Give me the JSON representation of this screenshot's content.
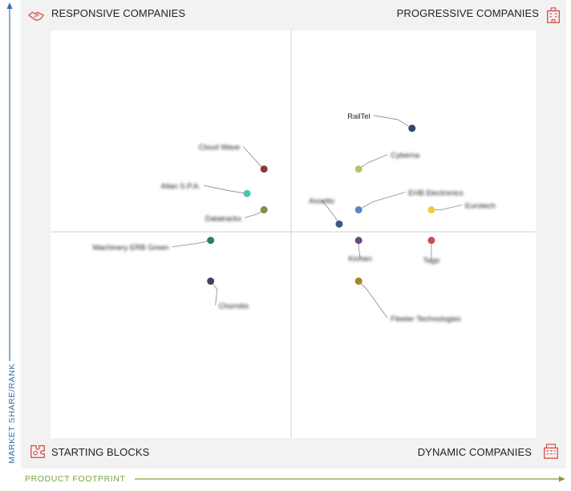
{
  "chart_data": {
    "type": "scatter",
    "title": "",
    "xlabel": "PRODUCT FOOTPRINT",
    "ylabel": "MARKET SHARE/RANK",
    "xlim": [
      0,
      10
    ],
    "ylim": [
      0,
      10
    ],
    "quadrants": {
      "top_left": "RESPONSIVE COMPANIES",
      "top_right": "PROGRESSIVE COMPANIES",
      "bottom_left": "STARTING BLOCKS",
      "bottom_right": "DYNAMIC COMPANIES"
    },
    "points": [
      {
        "label": "RailTel",
        "x": 7.45,
        "y": 7.6,
        "color": "#2f4a66",
        "blurred": false
      },
      {
        "label": "Cyberna",
        "x": 6.35,
        "y": 6.6,
        "color": "#b5c46a",
        "blurred": true
      },
      {
        "label": "EHB Electronics",
        "x": 6.35,
        "y": 5.6,
        "color": "#5b86c4",
        "blurred": true
      },
      {
        "label": "Eurotech",
        "x": 7.85,
        "y": 5.6,
        "color": "#f5c842",
        "blurred": true
      },
      {
        "label": "Assetto",
        "x": 5.95,
        "y": 5.25,
        "color": "#3d5a80",
        "blurred": true
      },
      {
        "label": "Cloud Wave",
        "x": 4.4,
        "y": 6.6,
        "color": "#8b3a3a",
        "blurred": true
      },
      {
        "label": "Ailan S.P.A.",
        "x": 4.05,
        "y": 6.0,
        "color": "#4fc2b0",
        "blurred": true
      },
      {
        "label": "Datatrackx",
        "x": 4.4,
        "y": 5.6,
        "color": "#8a8a4a",
        "blurred": true
      },
      {
        "label": "Machinery ERB Green",
        "x": 3.3,
        "y": 4.85,
        "color": "#2e7d6b",
        "blurred": true
      },
      {
        "label": "Chornitis",
        "x": 3.3,
        "y": 3.85,
        "color": "#4a3a66",
        "blurred": true
      },
      {
        "label": "Kinhen",
        "x": 6.35,
        "y": 4.85,
        "color": "#6b4a7a",
        "blurred": true
      },
      {
        "label": "Tago",
        "x": 7.85,
        "y": 4.85,
        "color": "#c85050",
        "blurred": true
      },
      {
        "label": "Fleeter Technologies",
        "x": 6.35,
        "y": 3.85,
        "color": "#a8862a",
        "blurred": true
      }
    ]
  }
}
